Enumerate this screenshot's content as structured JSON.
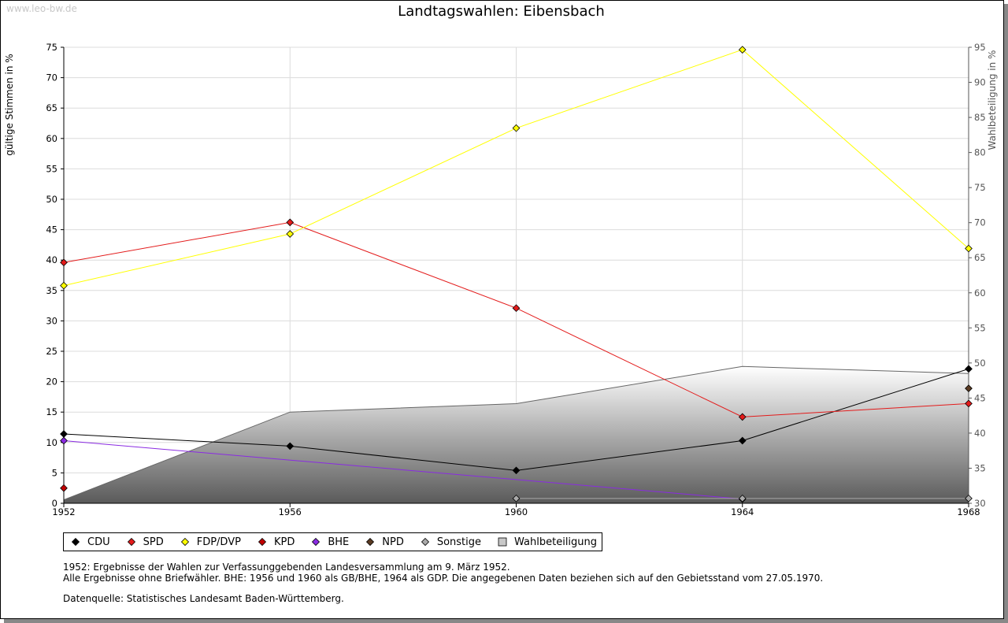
{
  "watermark": "www.leo-bw.de",
  "chart_data": {
    "type": "line",
    "title": "Landtagswahlen: Eibensbach",
    "ylabel": "gültige Stimmen in %",
    "y2label": "Wahlbeteiligung in %",
    "ylim": [
      0,
      75
    ],
    "y2lim": [
      30,
      95
    ],
    "yticks": [
      "0",
      "5",
      "10",
      "15",
      "20",
      "25",
      "30",
      "35",
      "40",
      "45",
      "50",
      "55",
      "60",
      "65",
      "70",
      "75"
    ],
    "y2ticks": [
      "30",
      "35",
      "40",
      "45",
      "50",
      "55",
      "60",
      "65",
      "70",
      "75",
      "80",
      "85",
      "90",
      "95"
    ],
    "categories": [
      "1952",
      "1956",
      "1960",
      "1964",
      "1968"
    ],
    "grid": true,
    "series": [
      {
        "name": "CDU",
        "color": "#000000",
        "values": [
          11.4,
          9.4,
          5.4,
          10.3,
          22.1
        ]
      },
      {
        "name": "SPD",
        "color": "#e31b1b",
        "values": [
          39.6,
          46.2,
          32.1,
          14.2,
          16.4
        ]
      },
      {
        "name": "FDP/DVP",
        "color": "#ffff00",
        "values": [
          35.8,
          44.3,
          61.7,
          74.6,
          41.9
        ]
      },
      {
        "name": "KPD",
        "color": "#c00000",
        "values": [
          2.5,
          null,
          null,
          null,
          null
        ]
      },
      {
        "name": "BHE",
        "color": "#8a2be2",
        "values": [
          10.3,
          null,
          null,
          0.7,
          null
        ]
      },
      {
        "name": "NPD",
        "color": "#5a3a22",
        "values": [
          null,
          null,
          null,
          null,
          18.9
        ]
      },
      {
        "name": "Sonstige",
        "color": "#aaaaaa",
        "values": [
          null,
          null,
          0.8,
          0.8,
          0.8
        ]
      }
    ],
    "area_series": {
      "name": "Wahlbeteiligung",
      "axis": "right",
      "values": [
        30.5,
        43.0,
        44.2,
        49.5,
        48.5
      ]
    },
    "legend": [
      "CDU",
      "SPD",
      "FDP/DVP",
      "KPD",
      "BHE",
      "NPD",
      "Sonstige",
      "Wahlbeteiligung"
    ],
    "legend_placement": "bottom-left"
  },
  "notes": [
    "1952: Ergebnisse der Wahlen zur Verfassunggebenden Landesversammlung am 9. März 1952.",
    "Alle Ergebnisse ohne Briefwähler. BHE: 1956 und 1960 als GB/BHE, 1964 als GDP. Die angegebenen Daten beziehen sich auf den Gebietsstand vom 27.05.1970."
  ],
  "source": "Datenquelle: Statistisches Landesamt Baden-Württemberg."
}
